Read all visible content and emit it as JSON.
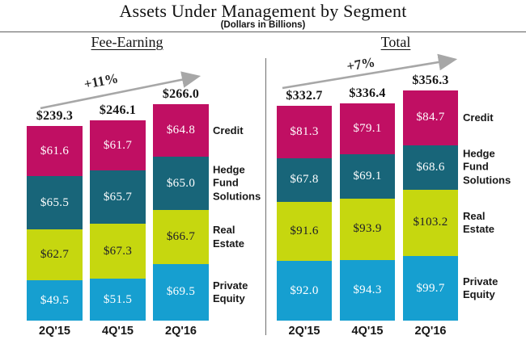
{
  "title": "Assets Under Management by Segment",
  "subtitle": "(Dollars in Billions)",
  "colors": {
    "credit": "#c00f63",
    "hedge_fund_solutions": "#186579",
    "real_estate": "#c6d70f",
    "private_equity": "#169fd0",
    "arrow": "#a7a7a7",
    "divider": "#6f6f6f"
  },
  "chart_data": [
    {
      "type": "bar",
      "stacked": true,
      "group_label": "Fee-Earning",
      "growth_label": "+11%",
      "unit": "USD billions",
      "categories": [
        "2Q'15",
        "4Q'15",
        "2Q'16"
      ],
      "totals": [
        239.3,
        246.1,
        266.0
      ],
      "series": [
        {
          "name": "Credit",
          "color": "#c00f63",
          "label_color": "#ffffff",
          "values": [
            61.6,
            61.7,
            64.8
          ]
        },
        {
          "name": "Hedge Fund Solutions",
          "color": "#186579",
          "label_color": "#ffffff",
          "values": [
            65.5,
            65.7,
            65.0
          ]
        },
        {
          "name": "Real Estate",
          "color": "#c6d70f",
          "label_color": "#1c1c2a",
          "values": [
            62.7,
            67.3,
            66.7
          ]
        },
        {
          "name": "Private Equity",
          "color": "#169fd0",
          "label_color": "#ffffff",
          "values": [
            49.5,
            51.5,
            69.5
          ]
        }
      ],
      "legend_position": "right",
      "value_prefix": "$"
    },
    {
      "type": "bar",
      "stacked": true,
      "group_label": "Total",
      "growth_label": "+7%",
      "unit": "USD billions",
      "categories": [
        "2Q'15",
        "4Q'15",
        "2Q'16"
      ],
      "totals": [
        332.7,
        336.4,
        356.3
      ],
      "series": [
        {
          "name": "Credit",
          "color": "#c00f63",
          "label_color": "#ffffff",
          "values": [
            81.3,
            79.1,
            84.7
          ]
        },
        {
          "name": "Hedge Fund Solutions",
          "color": "#186579",
          "label_color": "#ffffff",
          "values": [
            67.8,
            69.1,
            68.6
          ]
        },
        {
          "name": "Real Estate",
          "color": "#c6d70f",
          "label_color": "#1c1c2a",
          "values": [
            91.6,
            93.9,
            103.2
          ]
        },
        {
          "name": "Private Equity",
          "color": "#169fd0",
          "label_color": "#ffffff",
          "values": [
            92.0,
            94.3,
            99.7
          ]
        }
      ],
      "legend_position": "right",
      "value_prefix": "$"
    }
  ]
}
